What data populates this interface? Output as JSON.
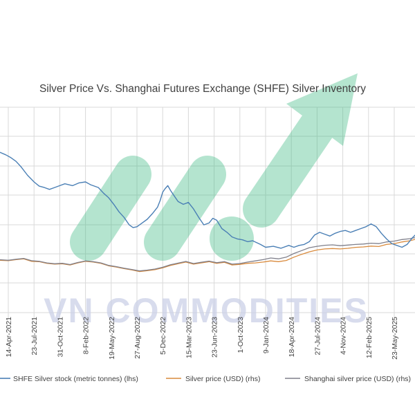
{
  "chart_data": {
    "type": "line",
    "title": "Silver Price Vs. Shanghai Futures Exchange (SHFE) Silver Inventory",
    "x_labels": [
      "14-Apr-2021",
      "23-Jul-2021",
      "31-Oct-2021",
      "8-Feb-2022",
      "19-May-2022",
      "27-Aug-2022",
      "5-Dec-2022",
      "15-Mar-2023",
      "23-Jun-2023",
      "1-Oct-2023",
      "9-Jan-2024",
      "18-Apr-2024",
      "27-Jul-2024",
      "4-Nov-2024",
      "12-Feb-2025",
      "23-May-2025"
    ],
    "x_tick_index": [
      0,
      1,
      2,
      3,
      4,
      5,
      6,
      7,
      8,
      9,
      10,
      11,
      12,
      13,
      14,
      15
    ],
    "grid": true,
    "legend_position": "bottom",
    "series": [
      {
        "name": "SHFE Silver stock (metric tonnes) (lhs)",
        "axis": "lhs",
        "color": "#4a7fb5",
        "x": [
          -0.35,
          -0.1,
          0.1,
          0.3,
          0.5,
          0.75,
          1.0,
          1.2,
          1.4,
          1.6,
          1.8,
          2.0,
          2.2,
          2.5,
          2.75,
          3.0,
          3.2,
          3.5,
          3.7,
          3.9,
          4.1,
          4.3,
          4.5,
          4.7,
          4.85,
          5.0,
          5.2,
          5.4,
          5.6,
          5.8,
          5.9,
          6.0,
          6.1,
          6.2,
          6.3,
          6.45,
          6.6,
          6.8,
          7.0,
          7.2,
          7.4,
          7.6,
          7.8,
          7.95,
          8.1,
          8.3,
          8.5,
          8.7,
          8.9,
          9.1,
          9.3,
          9.5,
          9.8,
          10.0,
          10.3,
          10.6,
          10.9,
          11.1,
          11.3,
          11.5,
          11.7,
          11.9,
          12.1,
          12.3,
          12.5,
          12.7,
          12.9,
          13.1,
          13.3,
          13.5,
          13.7,
          13.9,
          14.1,
          14.3,
          14.5,
          14.7,
          14.9,
          15.1,
          15.3,
          15.5,
          15.7,
          15.85
        ],
        "values": [
          1720,
          1690,
          1660,
          1620,
          1560,
          1470,
          1400,
          1355,
          1340,
          1320,
          1340,
          1360,
          1380,
          1360,
          1390,
          1400,
          1370,
          1340,
          1280,
          1230,
          1160,
          1080,
          1020,
          940,
          910,
          920,
          960,
          1000,
          1060,
          1130,
          1200,
          1290,
          1330,
          1360,
          1310,
          1250,
          1190,
          1160,
          1180,
          1110,
          1020,
          940,
          960,
          1010,
          990,
          900,
          860,
          810,
          790,
          780,
          760,
          770,
          730,
          700,
          710,
          690,
          720,
          700,
          720,
          730,
          760,
          830,
          860,
          840,
          820,
          850,
          870,
          880,
          860,
          880,
          900,
          920,
          950,
          920,
          850,
          790,
          740,
          720,
          700,
          730,
          800,
          840
        ]
      },
      {
        "name": "Silver price (USD) (rhs)",
        "axis": "rhs",
        "color": "#d98a3c",
        "x": [
          -0.35,
          0,
          0.3,
          0.6,
          0.9,
          1.2,
          1.5,
          1.8,
          2.1,
          2.4,
          2.7,
          3.0,
          3.3,
          3.6,
          3.9,
          4.2,
          4.5,
          4.8,
          5.1,
          5.4,
          5.7,
          6.0,
          6.3,
          6.6,
          6.9,
          7.2,
          7.5,
          7.8,
          8.1,
          8.4,
          8.7,
          9.0,
          9.3,
          9.6,
          9.9,
          10.2,
          10.5,
          10.8,
          11.1,
          11.4,
          11.7,
          12.0,
          12.3,
          12.6,
          12.9,
          13.2,
          13.5,
          13.8,
          14.1,
          14.4,
          14.7,
          15.0,
          15.3,
          15.6,
          15.85
        ],
        "values": [
          25.5,
          25.3,
          25.8,
          26.2,
          25.0,
          24.8,
          24.0,
          23.6,
          23.8,
          23.2,
          24.2,
          25.0,
          24.6,
          24.0,
          22.8,
          22.2,
          21.4,
          20.8,
          20.0,
          20.4,
          20.9,
          21.8,
          23.0,
          23.8,
          24.6,
          23.6,
          24.2,
          24.8,
          24.0,
          24.5,
          23.2,
          23.5,
          24.0,
          24.2,
          24.6,
          25.2,
          24.8,
          25.4,
          27.0,
          28.4,
          29.6,
          30.5,
          31.0,
          31.2,
          31.0,
          31.3,
          31.8,
          32.0,
          32.4,
          32.2,
          33.2,
          33.6,
          34.4,
          35.0,
          35.8
        ]
      },
      {
        "name": "Shanghai silver price (USD) (rhs)",
        "axis": "rhs",
        "color": "#7f7f8a",
        "x": [
          -0.35,
          0,
          0.3,
          0.6,
          0.9,
          1.2,
          1.5,
          1.8,
          2.1,
          2.4,
          2.7,
          3.0,
          3.3,
          3.6,
          3.9,
          4.2,
          4.5,
          4.8,
          5.1,
          5.4,
          5.7,
          6.0,
          6.3,
          6.6,
          6.9,
          7.2,
          7.5,
          7.8,
          8.1,
          8.4,
          8.7,
          9.0,
          9.3,
          9.6,
          9.9,
          10.2,
          10.5,
          10.8,
          11.1,
          11.4,
          11.7,
          12.0,
          12.3,
          12.6,
          12.9,
          13.2,
          13.5,
          13.8,
          14.1,
          14.4,
          14.7,
          15.0,
          15.3,
          15.6,
          15.85
        ],
        "values": [
          25.8,
          25.5,
          26.0,
          26.4,
          25.3,
          25.0,
          24.2,
          23.8,
          24.0,
          23.4,
          24.4,
          25.2,
          24.8,
          24.2,
          23.0,
          22.4,
          21.6,
          21.0,
          20.3,
          20.7,
          21.2,
          22.1,
          23.3,
          24.1,
          24.9,
          23.9,
          24.5,
          25.1,
          24.3,
          24.8,
          23.6,
          23.9,
          24.6,
          25.2,
          25.8,
          26.6,
          26.2,
          27.0,
          28.8,
          30.2,
          31.6,
          32.3,
          32.8,
          33.0,
          32.6,
          32.9,
          33.2,
          33.4,
          33.8,
          33.6,
          34.4,
          34.8,
          35.6,
          36.0,
          36.6
        ]
      }
    ],
    "lhs_range": [
      0,
      2200
    ],
    "rhs_range": [
      0,
      100
    ]
  },
  "watermark": {
    "text": "VN COMMODITIES",
    "color": "#2eb37a"
  }
}
